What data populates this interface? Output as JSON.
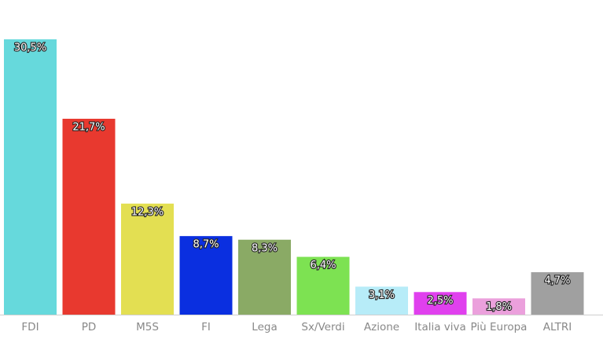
{
  "chart_data": {
    "type": "bar",
    "categories": [
      "FDI",
      "PD",
      "M5S",
      "FI",
      "Lega",
      "Sx/Verdi",
      "Azione",
      "Italia viva",
      "Più Europa",
      "ALTRI"
    ],
    "values": [
      30.5,
      21.7,
      12.3,
      8.7,
      8.3,
      6.4,
      3.1,
      2.5,
      1.8,
      4.7
    ],
    "value_labels": [
      "30,5%",
      "21,7%",
      "12,3%",
      "8,7%",
      "8,3%",
      "6,4%",
      "3,1%",
      "2,5%",
      "1,8%",
      "4,7%"
    ],
    "colors": [
      "#66d9dc",
      "#e8392f",
      "#e3df52",
      "#0a2fe0",
      "#8aaa65",
      "#7de252",
      "#b7ecf8",
      "#e040ee",
      "#eba0dc",
      "#a0a0a0"
    ]
  }
}
